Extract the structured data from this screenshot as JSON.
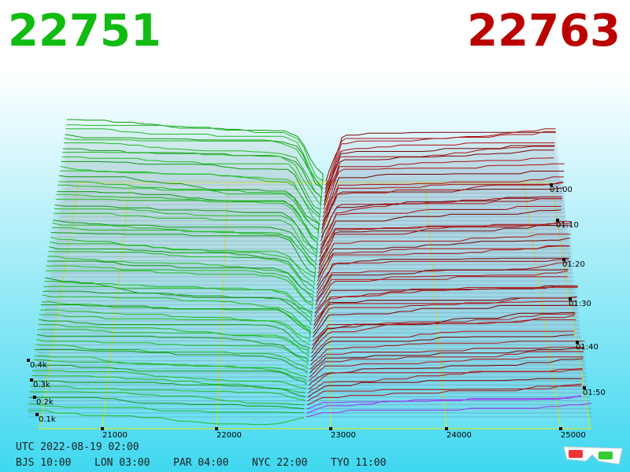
{
  "header": {
    "bid": "22751",
    "ask": "22763"
  },
  "price_labels": [
    "21000",
    "22000",
    "23000",
    "24000",
    "25000"
  ],
  "depth_labels": [
    "0.4k",
    "0.3k",
    "0.2k",
    "0.1k"
  ],
  "time_labels": [
    "01:00",
    "01:10",
    "01:20",
    "01:30",
    "01:40",
    "01:50"
  ],
  "footer": {
    "utc": "UTC 2022-08-19 02:00",
    "cities": [
      "BJS 10:00",
      "LON 03:00",
      "PAR 04:00",
      "NYC 22:00",
      "TYO 11:00"
    ]
  }
}
